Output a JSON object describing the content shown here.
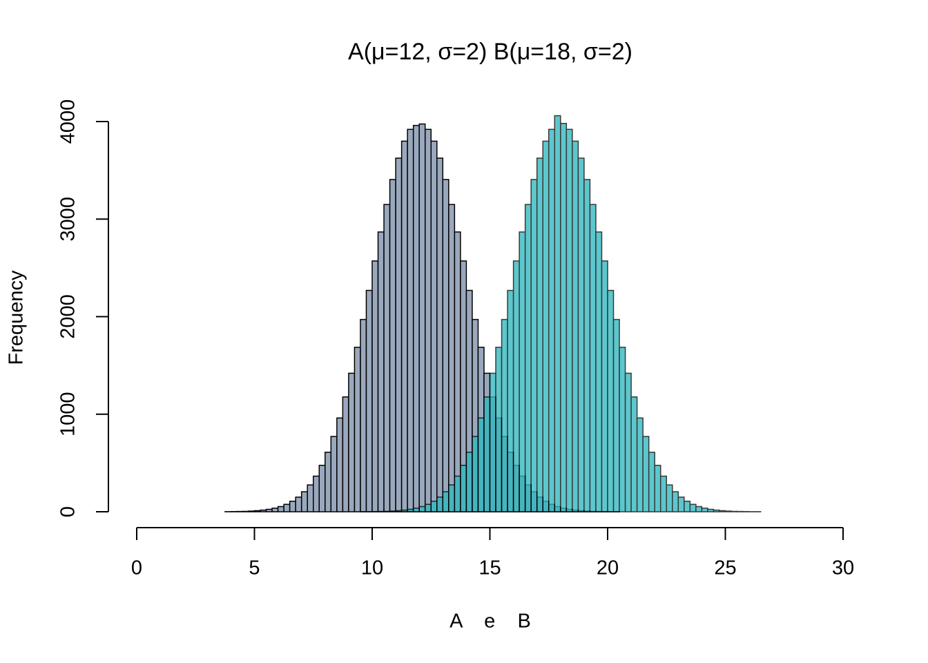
{
  "chart_data": {
    "type": "histogram",
    "title": "A(μ=12,  σ=2)  B(μ=18,  σ=2)",
    "x_label": "A    e    B",
    "y_label": "Frequency",
    "series": [
      {
        "color": "#9aa8bd",
        "opacity": 1,
        "bins": [
          3.75,
          4,
          4.25,
          4.5,
          4.75,
          5,
          5.25,
          5.5,
          5.75,
          6,
          6.25,
          6.5,
          6.75,
          7,
          7.25,
          7.5,
          7.75,
          8,
          8.25,
          8.5,
          8.75,
          9,
          9.25,
          9.5,
          9.75,
          10,
          10.25,
          10.5,
          10.75,
          11,
          11.25,
          11.5,
          11.75,
          12,
          12.25,
          12.5,
          12.75,
          13,
          13.25,
          13.5,
          13.75,
          14,
          14.25,
          14.5,
          14.75,
          15,
          15.25,
          15.5,
          15.75,
          16,
          16.25,
          16.5,
          16.75,
          17,
          17.25,
          17.5,
          17.75,
          18,
          18.25,
          18.5,
          18.75,
          19,
          19.25,
          19.5,
          19.75,
          20,
          20.25,
          20.5
        ],
        "values": [
          1,
          2,
          3,
          4,
          7,
          11,
          17,
          25,
          37,
          53,
          76,
          108,
          150,
          205,
          275,
          365,
          476,
          610,
          772,
          961,
          1177,
          1420,
          1686,
          1971,
          2269,
          2571,
          2868,
          3150,
          3406,
          3625,
          3799,
          3920,
          3960,
          3975,
          3920,
          3799,
          3625,
          3406,
          3150,
          2868,
          2571,
          2269,
          1971,
          1686,
          1420,
          1177,
          961,
          772,
          610,
          476,
          365,
          275,
          205,
          150,
          108,
          76,
          53,
          37,
          25,
          17,
          11,
          7,
          4,
          3,
          2,
          1,
          1
        ]
      },
      {
        "color": "#2fb8c0",
        "opacity": 0.78,
        "bins": [
          8,
          8.25,
          8.5,
          8.75,
          9,
          9.25,
          9.5,
          9.75,
          10,
          10.25,
          10.5,
          10.75,
          11,
          11.25,
          11.5,
          11.75,
          12,
          12.25,
          12.5,
          12.75,
          13,
          13.25,
          13.5,
          13.75,
          14,
          14.25,
          14.5,
          14.75,
          15,
          15.25,
          15.5,
          15.75,
          16,
          16.25,
          16.5,
          16.75,
          17,
          17.25,
          17.5,
          17.75,
          18,
          18.25,
          18.5,
          18.75,
          19,
          19.25,
          19.5,
          19.75,
          20,
          20.25,
          20.5,
          20.75,
          21,
          21.25,
          21.5,
          21.75,
          22,
          22.25,
          22.5,
          22.75,
          23,
          23.25,
          23.5,
          23.75,
          24,
          24.25,
          24.5,
          24.75,
          25,
          25.25,
          25.5,
          25.75,
          26,
          26.25,
          26.5,
          26.75
        ],
        "values": [
          0,
          0,
          0,
          0,
          0,
          0,
          1,
          1,
          2,
          3,
          4,
          7,
          11,
          17,
          25,
          37,
          53,
          76,
          108,
          150,
          205,
          275,
          365,
          476,
          610,
          772,
          961,
          1177,
          1420,
          1686,
          1971,
          2269,
          2571,
          2868,
          3150,
          3406,
          3625,
          3799,
          3920,
          4060,
          3981,
          3920,
          3799,
          3625,
          3406,
          3150,
          2868,
          2571,
          2269,
          1971,
          1686,
          1420,
          1177,
          961,
          772,
          610,
          476,
          365,
          275,
          205,
          150,
          108,
          76,
          53,
          37,
          25,
          17,
          11,
          7,
          4,
          3,
          2,
          1,
          1,
          0
        ]
      }
    ],
    "xlim": [
      0,
      30
    ],
    "xticks": [
      0,
      5,
      10,
      15,
      20,
      25,
      30
    ],
    "ylim": [
      0,
      4000
    ],
    "yticks": [
      0,
      1000,
      2000,
      3000,
      4000
    ]
  }
}
